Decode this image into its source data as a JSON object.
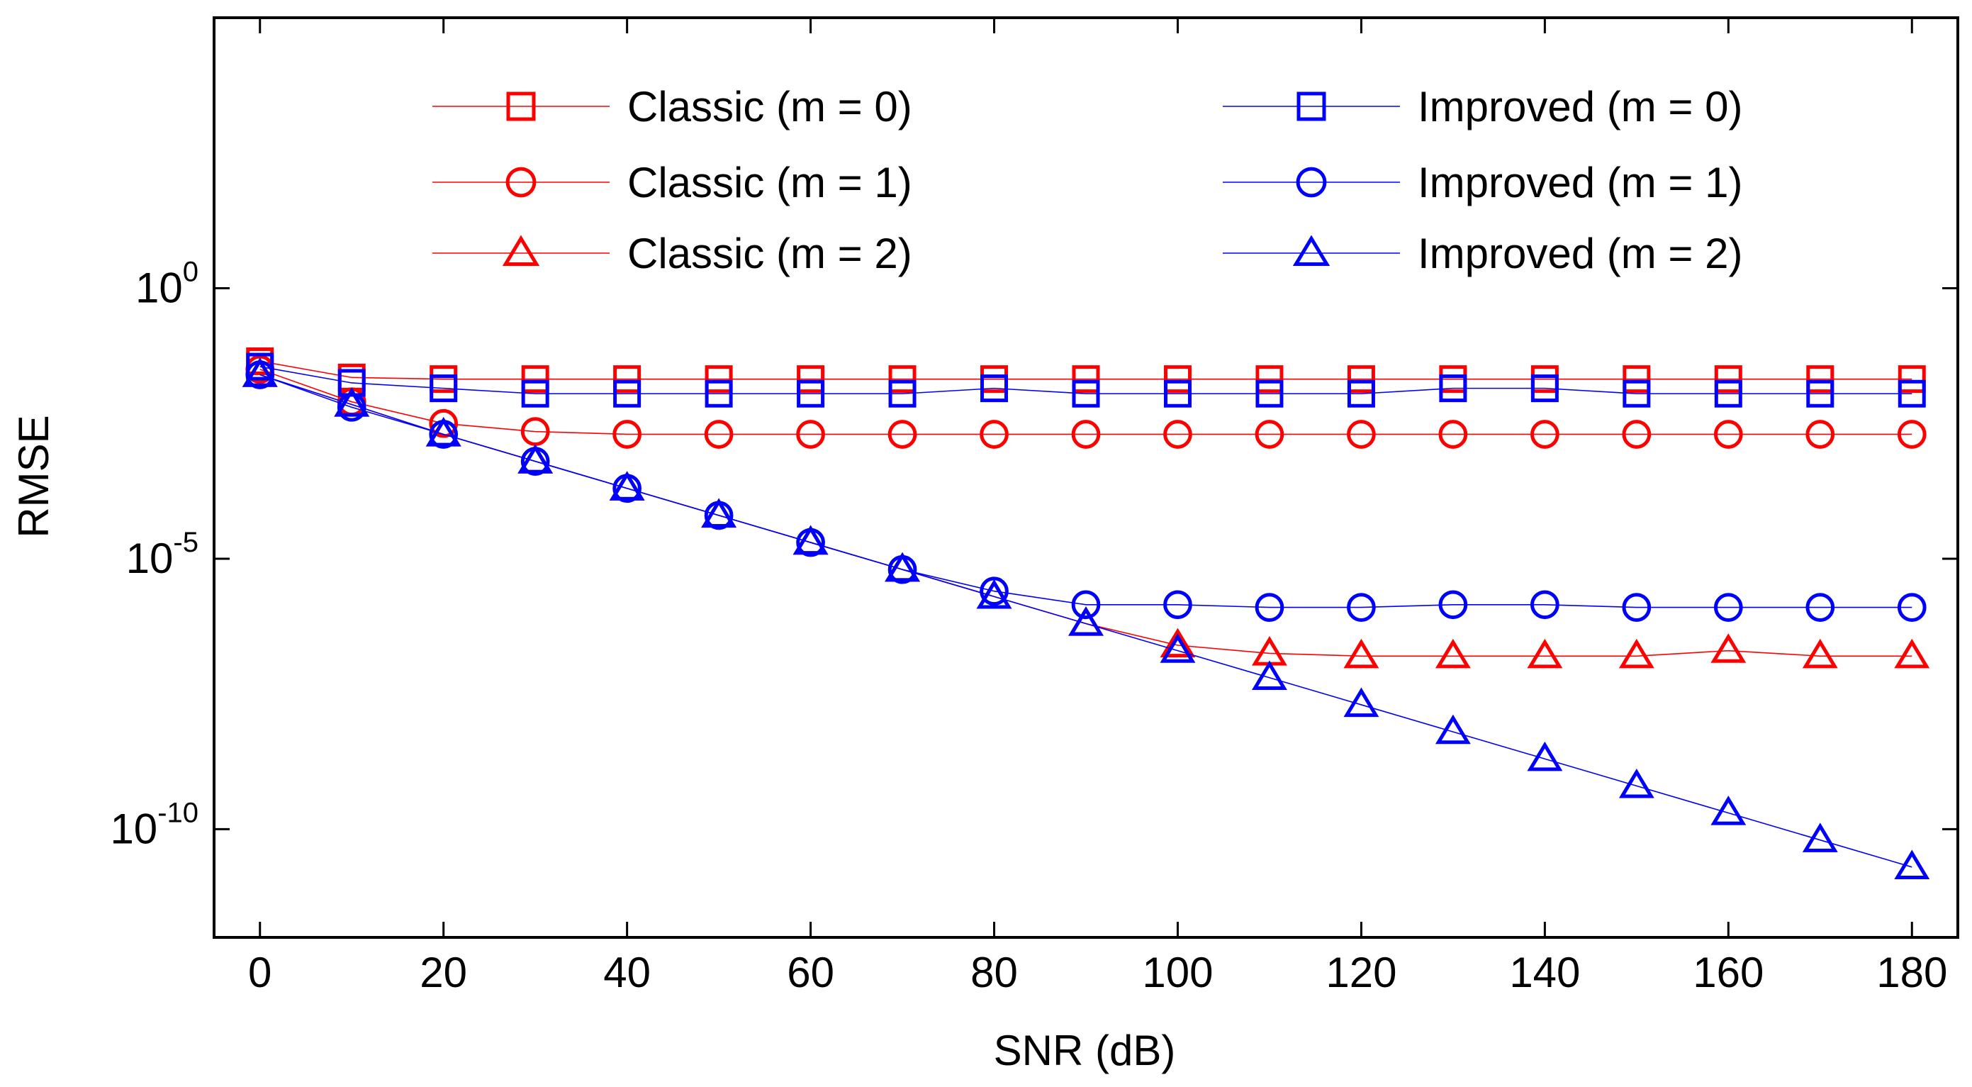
{
  "chart_data": {
    "type": "line",
    "xlabel": "SNR (dB)",
    "ylabel": "RMSE",
    "xlim": [
      -5,
      185
    ],
    "ylim_log10": [
      -12,
      5
    ],
    "yscale": "log",
    "x": [
      0,
      10,
      20,
      30,
      40,
      50,
      60,
      70,
      80,
      90,
      100,
      110,
      120,
      130,
      140,
      150,
      160,
      170,
      180
    ],
    "xticks": [
      {
        "label": "0",
        "value": 0
      },
      {
        "label": "20",
        "value": 20
      },
      {
        "label": "40",
        "value": 40
      },
      {
        "label": "60",
        "value": 60
      },
      {
        "label": "80",
        "value": 80
      },
      {
        "label": "100",
        "value": 100
      },
      {
        "label": "120",
        "value": 120
      },
      {
        "label": "140",
        "value": 140
      },
      {
        "label": "160",
        "value": 160
      },
      {
        "label": "180",
        "value": 180
      }
    ],
    "yticks": [
      {
        "base": "10",
        "exp": "0",
        "value": 0
      },
      {
        "base": "10",
        "exp": "-5",
        "value": -5
      },
      {
        "base": "10",
        "exp": "-10",
        "value": -10
      }
    ],
    "series": [
      {
        "name": "Classic (m = 0)",
        "color": "#ff0000",
        "marker": "square",
        "log10_values": [
          -1.35,
          -1.65,
          -1.68,
          -1.68,
          -1.68,
          -1.68,
          -1.68,
          -1.68,
          -1.68,
          -1.68,
          -1.68,
          -1.68,
          -1.68,
          -1.68,
          -1.68,
          -1.68,
          -1.68,
          -1.68,
          -1.68
        ]
      },
      {
        "name": "Classic (m = 1)",
        "color": "#ff0000",
        "marker": "circle",
        "log10_values": [
          -1.5,
          -2.1,
          -2.5,
          -2.65,
          -2.7,
          -2.7,
          -2.7,
          -2.7,
          -2.7,
          -2.7,
          -2.7,
          -2.7,
          -2.7,
          -2.7,
          -2.7,
          -2.7,
          -2.7,
          -2.7,
          -2.7
        ]
      },
      {
        "name": "Classic (m = 2)",
        "color": "#ff0000",
        "marker": "triangle",
        "log10_values": [
          -1.6,
          -2.15,
          -2.7,
          -3.2,
          -3.7,
          -4.2,
          -4.7,
          -5.2,
          -5.7,
          -6.2,
          -6.6,
          -6.75,
          -6.8,
          -6.8,
          -6.8,
          -6.8,
          -6.7,
          -6.8,
          -6.8
        ]
      },
      {
        "name": "Improved (m = 0)",
        "color": "#0000ff",
        "marker": "square",
        "log10_values": [
          -1.45,
          -1.75,
          -1.85,
          -1.95,
          -1.95,
          -1.95,
          -1.95,
          -1.95,
          -1.85,
          -1.95,
          -1.95,
          -1.95,
          -1.95,
          -1.85,
          -1.85,
          -1.95,
          -1.95,
          -1.95,
          -1.95
        ]
      },
      {
        "name": "Improved (m = 1)",
        "color": "#0000ff",
        "marker": "circle",
        "log10_values": [
          -1.6,
          -2.2,
          -2.7,
          -3.2,
          -3.7,
          -4.2,
          -4.7,
          -5.2,
          -5.6,
          -5.85,
          -5.85,
          -5.9,
          -5.9,
          -5.85,
          -5.85,
          -5.9,
          -5.9,
          -5.9,
          -5.9
        ]
      },
      {
        "name": "Improved (m = 2)",
        "color": "#0000ff",
        "marker": "triangle",
        "log10_values": [
          -1.6,
          -2.15,
          -2.7,
          -3.2,
          -3.7,
          -4.2,
          -4.7,
          -5.2,
          -5.7,
          -6.2,
          -6.7,
          -7.2,
          -7.7,
          -8.2,
          -8.7,
          -9.2,
          -9.7,
          -10.2,
          -10.7
        ]
      }
    ],
    "legend": {
      "placement": "top, two columns",
      "columns": [
        [
          "Classic (m = 0)",
          "Classic (m = 1)",
          "Classic (m = 2)"
        ],
        [
          "Improved (m = 0)",
          "Improved (m = 1)",
          "Improved (m = 2)"
        ]
      ]
    }
  }
}
